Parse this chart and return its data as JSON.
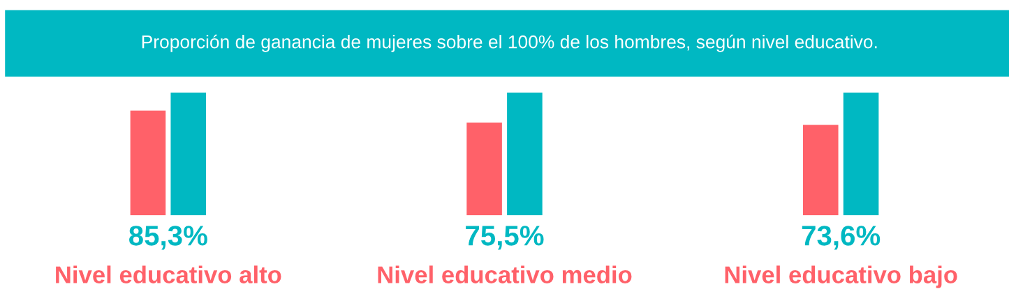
{
  "chart_data": {
    "type": "bar",
    "title": "Proporción de ganancia de mujeres sobre el 100% de los hombres, según nivel educativo.",
    "categories": [
      "Nivel educativo alto",
      "Nivel educativo medio",
      "Nivel educativo bajo"
    ],
    "series": [
      {
        "color": "#ff6169",
        "values": [
          85.3,
          75.5,
          73.6
        ],
        "value_labels": [
          "85,3%",
          "75,5%",
          "73,6%"
        ]
      },
      {
        "color": "#00b8c2",
        "values": [
          100,
          100,
          100
        ]
      }
    ],
    "tick_labels": "x"
  }
}
